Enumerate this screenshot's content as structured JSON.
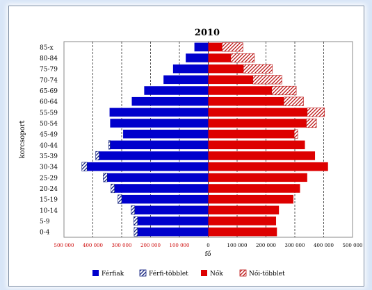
{
  "chart_data": {
    "type": "bar",
    "orientation": "horizontal",
    "title": "2010",
    "xlabel": "fő",
    "ylabel": "korcsoport",
    "xlim": [
      -500000,
      500000
    ],
    "xticks": [
      -500000,
      -400000,
      -300000,
      -200000,
      -100000,
      0,
      100000,
      200000,
      300000,
      400000,
      500000
    ],
    "xtick_labels": [
      "500 000",
      "400 000",
      "300 000",
      "200 000",
      "100 000",
      "0",
      "100 000",
      "200 000",
      "300 000",
      "400 000",
      "500 000"
    ],
    "grid": true,
    "legend_position": "bottom",
    "categories": [
      "0-4",
      "5-9",
      "10-14",
      "15-19",
      "20-24",
      "25-29",
      "30-34",
      "35-39",
      "40-44",
      "45-49",
      "50-54",
      "55-59",
      "60-64",
      "65-69",
      "70-74",
      "75-79",
      "80-84",
      "85-x"
    ],
    "series": [
      {
        "name": "Férfiak",
        "side": "left",
        "color": "#0000cc",
        "values": [
          245000,
          245000,
          255000,
          300000,
          325000,
          350000,
          420000,
          378000,
          340000,
          295000,
          340000,
          342000,
          265000,
          222000,
          155000,
          122000,
          78000,
          48000
        ]
      },
      {
        "name": "Férfi-többlet",
        "side": "left",
        "color": "#0a1a7a",
        "pattern": "hatch",
        "values": [
          12000,
          13000,
          12000,
          13000,
          12000,
          14000,
          18000,
          12000,
          5000,
          0,
          0,
          0,
          0,
          0,
          0,
          0,
          0,
          0
        ]
      },
      {
        "name": "Nők",
        "side": "right",
        "color": "#dd0000",
        "values": [
          238000,
          235000,
          245000,
          295000,
          318000,
          343000,
          415000,
          370000,
          335000,
          298000,
          340000,
          343000,
          262000,
          220000,
          155000,
          122000,
          78000,
          48000
        ]
      },
      {
        "name": "Női-többlet",
        "side": "right",
        "color": "#bb1111",
        "pattern": "hatch",
        "values": [
          0,
          0,
          0,
          0,
          0,
          0,
          0,
          0,
          0,
          12000,
          35000,
          60000,
          68000,
          85000,
          100000,
          100000,
          82000,
          72000
        ]
      }
    ],
    "colors": {
      "xtick_negative": "#cc0000",
      "xtick_positive": "#000000",
      "gridline": "#555555"
    }
  }
}
